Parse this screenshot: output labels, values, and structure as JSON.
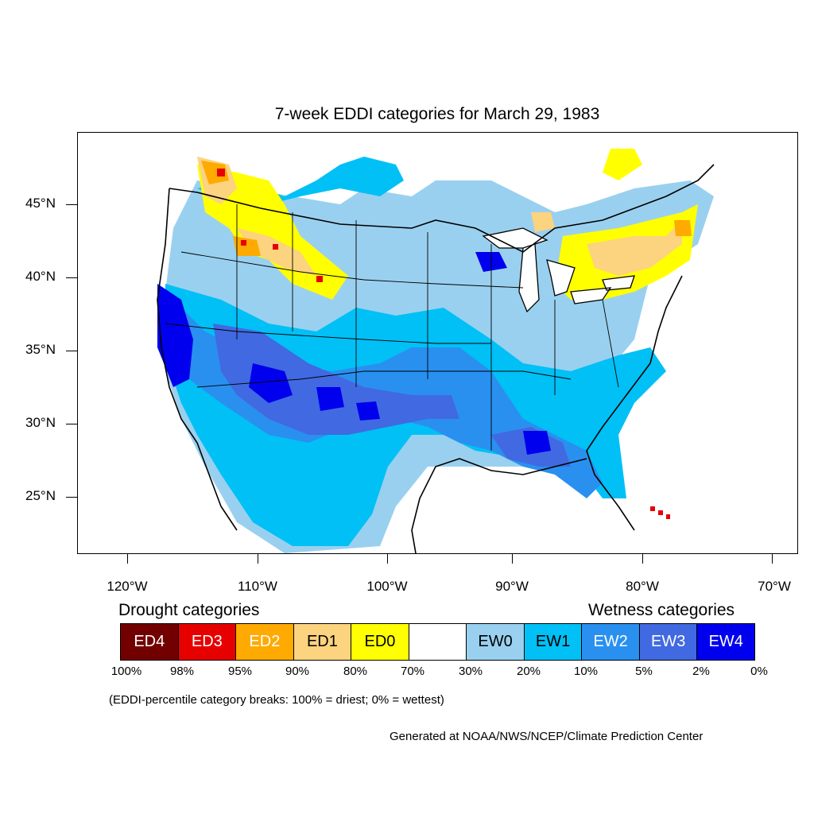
{
  "title": "7-week EDDI categories for March 29, 1983",
  "lat_labels": [
    "45°N",
    "40°N",
    "35°N",
    "30°N",
    "25°N"
  ],
  "lon_labels": [
    "120°W",
    "110°W",
    "100°W",
    "90°W",
    "80°W",
    "70°W"
  ],
  "legend": {
    "drought_title": "Drought categories",
    "wetness_title": "Wetness categories",
    "categories": [
      {
        "label": "ED4",
        "color": "#730000",
        "text_color": "#ffffff"
      },
      {
        "label": "ED3",
        "color": "#e60000",
        "text_color": "#ffffff"
      },
      {
        "label": "ED2",
        "color": "#ffaa00",
        "text_color": "#ffffff"
      },
      {
        "label": "ED1",
        "color": "#fcd37f",
        "text_color": "#000000"
      },
      {
        "label": "ED0",
        "color": "#ffff00",
        "text_color": "#000000"
      },
      {
        "label": "",
        "color": "#ffffff",
        "text_color": "#000000"
      },
      {
        "label": "EW0",
        "color": "#9ad0ef",
        "text_color": "#000000"
      },
      {
        "label": "EW1",
        "color": "#00c0f6",
        "text_color": "#000000"
      },
      {
        "label": "EW2",
        "color": "#2990f0",
        "text_color": "#ffffff"
      },
      {
        "label": "EW3",
        "color": "#4169e1",
        "text_color": "#ffffff"
      },
      {
        "label": "EW4",
        "color": "#0000ee",
        "text_color": "#ffffff"
      }
    ],
    "breaks": [
      "100%",
      "98%",
      "95%",
      "90%",
      "80%",
      "70%",
      "30%",
      "20%",
      "10%",
      "5%",
      "2%",
      "0%"
    ]
  },
  "note": "(EDDI-percentile category breaks: 100% = driest; 0% = wettest)",
  "credit": "Generated at NOAA/NWS/NCEP/Climate Prediction Center"
}
